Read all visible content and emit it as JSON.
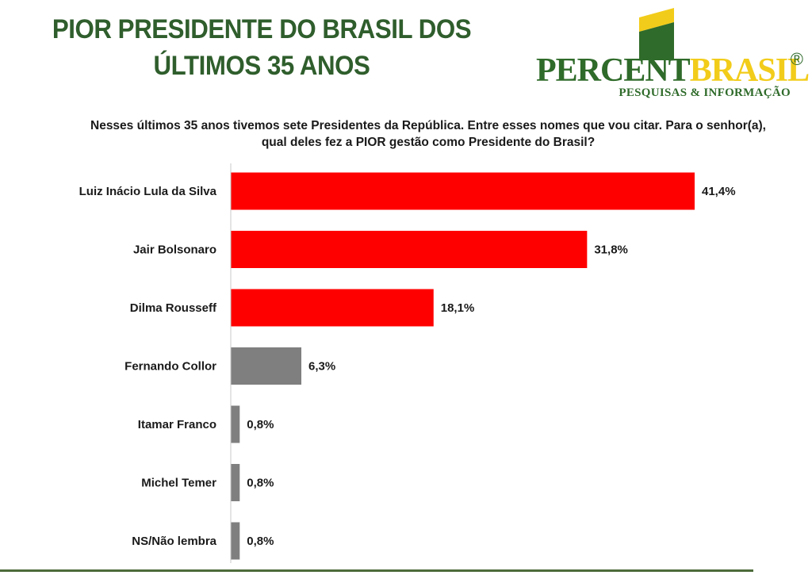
{
  "header": {
    "title_line1": "PIOR PRESIDENTE DO BRASIL DOS",
    "title_line2": "ÚLTIMOS 35 ANOS"
  },
  "logo": {
    "word_part1": "PERCENT",
    "word_part2": "BRASIL",
    "registered": "®",
    "tagline": "PESQUISAS & INFORMAÇÃO",
    "colors": {
      "green": "#2f6b2a",
      "yellow": "#f2cc1a"
    }
  },
  "question": "Nesses últimos 35 anos tivemos sete Presidentes da República. Entre esses nomes que vou citar. Para o senhor(a), qual deles fez a PIOR gestão como Presidente do Brasil?",
  "chart_data": {
    "type": "bar",
    "orientation": "horizontal",
    "categories": [
      "Luiz Inácio Lula da Silva",
      "Jair Bolsonaro",
      "Dilma Rousseff",
      "Fernando Collor",
      "Itamar Franco",
      "Michel Temer",
      "NS/Não lembra"
    ],
    "values": [
      41.4,
      31.8,
      18.1,
      6.3,
      0.8,
      0.8,
      0.8
    ],
    "value_labels": [
      "41,4%",
      "31,8%",
      "18,1%",
      "6,3%",
      "0,8%",
      "0,8%",
      "0,8%"
    ],
    "bar_colors": [
      "#ff0000",
      "#ff0000",
      "#ff0000",
      "#7f7f7f",
      "#7f7f7f",
      "#7f7f7f",
      "#7f7f7f"
    ],
    "xlim": [
      0,
      45
    ],
    "grid": false,
    "legend": "none"
  }
}
